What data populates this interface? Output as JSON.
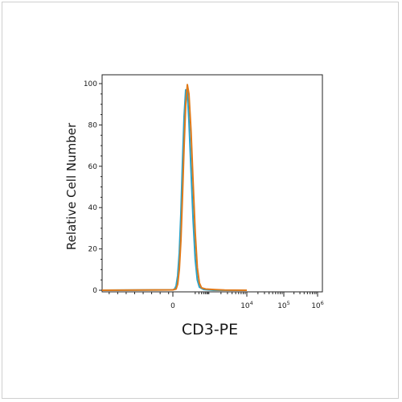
{
  "chart_data": {
    "type": "line",
    "title": "",
    "xlabel": "CD3-PE",
    "ylabel": "Relative Cell Number",
    "ylim": [
      0,
      100
    ],
    "yticks": [
      "0",
      "20",
      "40",
      "60",
      "80",
      "100"
    ],
    "x_scale": "biexponential",
    "xticks": [
      {
        "label": "0",
        "base": "0",
        "exp": ""
      },
      {
        "label": "10^4",
        "base": "10",
        "exp": "4"
      },
      {
        "label": "10^5",
        "base": "10",
        "exp": "5"
      },
      {
        "label": "10^6",
        "base": "10",
        "exp": "6"
      }
    ],
    "grid": false,
    "legend": "none",
    "series": [
      {
        "color": "#2aa3c9",
        "points": [
          [
            -0.5,
            0
          ],
          [
            0,
            0.2
          ],
          [
            0.1,
            0.5
          ],
          [
            0.2,
            2
          ],
          [
            0.3,
            7
          ],
          [
            0.4,
            18
          ],
          [
            0.5,
            37
          ],
          [
            0.6,
            62
          ],
          [
            0.7,
            84
          ],
          [
            0.8,
            97
          ],
          [
            0.9,
            96
          ],
          [
            1.0,
            82
          ],
          [
            1.1,
            58
          ],
          [
            1.2,
            34
          ],
          [
            1.3,
            15
          ],
          [
            1.4,
            5
          ],
          [
            1.5,
            1.5
          ],
          [
            1.7,
            0.4
          ],
          [
            2.2,
            0
          ],
          [
            4.0,
            0
          ]
        ]
      },
      {
        "color": "#e07a1a",
        "points": [
          [
            -0.5,
            0
          ],
          [
            0,
            0.2
          ],
          [
            0.2,
            0.6
          ],
          [
            0.3,
            3
          ],
          [
            0.4,
            10
          ],
          [
            0.5,
            24
          ],
          [
            0.6,
            46
          ],
          [
            0.7,
            70
          ],
          [
            0.8,
            90
          ],
          [
            0.9,
            99.5
          ],
          [
            1.0,
            95
          ],
          [
            1.1,
            77
          ],
          [
            1.2,
            52
          ],
          [
            1.3,
            28
          ],
          [
            1.4,
            11
          ],
          [
            1.5,
            3.5
          ],
          [
            1.6,
            1.2
          ],
          [
            1.8,
            0.6
          ],
          [
            2.3,
            0.3
          ],
          [
            2.8,
            0.1
          ],
          [
            4.0,
            0
          ]
        ]
      }
    ]
  }
}
